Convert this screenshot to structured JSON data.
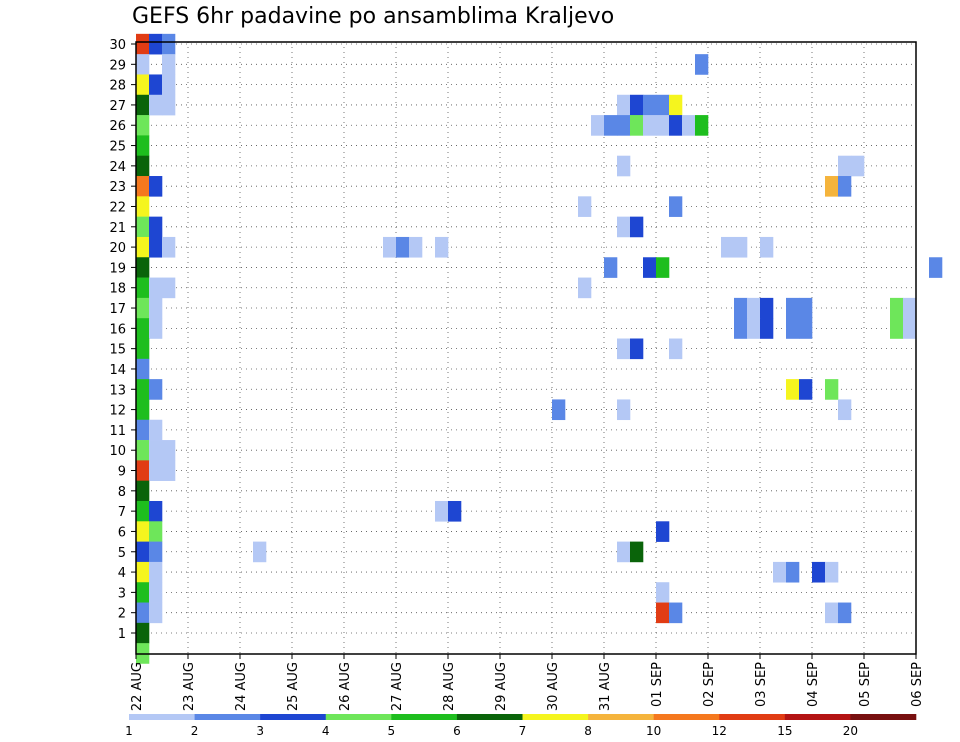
{
  "chart_data": {
    "type": "heatmap",
    "title": "GEFS 6hr padavine po ansamblima Kraljevo",
    "xlabel": "",
    "ylabel": "",
    "y_range": [
      1,
      30
    ],
    "y_ticks": [
      "1",
      "2",
      "3",
      "4",
      "5",
      "6",
      "7",
      "8",
      "9",
      "10",
      "11",
      "12",
      "13",
      "14",
      "15",
      "16",
      "17",
      "18",
      "19",
      "20",
      "21",
      "22",
      "23",
      "24",
      "25",
      "26",
      "27",
      "28",
      "29",
      "30"
    ],
    "x_ticks": [
      "22 AUG",
      "23 AUG",
      "24 AUG",
      "25 AUG",
      "26 AUG",
      "27 AUG",
      "28 AUG",
      "29 AUG",
      "30 AUG",
      "31 AUG",
      "01 SEP",
      "02 SEP",
      "03 SEP",
      "04 SEP",
      "05 SEP",
      "06 SEP"
    ],
    "steps_per_day": 4,
    "grid": true,
    "legend_position": "bottom",
    "legend": {
      "labels": [
        "1",
        "2",
        "3",
        "4",
        "5",
        "6",
        "7",
        "8",
        "10",
        "12",
        "15",
        "20"
      ],
      "colors": [
        "#b4c8f5",
        "#5a87e6",
        "#1e46d2",
        "#6ee65a",
        "#1ebe1e",
        "#0a640a",
        "#f5f51e",
        "#f5b43c",
        "#f5781e",
        "#e13c14",
        "#b41414",
        "#781010"
      ]
    },
    "cells": [
      {
        "m": 30,
        "t": 0,
        "c": 9
      },
      {
        "m": 30,
        "t": 1,
        "c": 2
      },
      {
        "m": 30,
        "t": 2,
        "c": 1
      },
      {
        "m": 29,
        "t": 0,
        "c": 0
      },
      {
        "m": 29,
        "t": 2,
        "c": 0
      },
      {
        "m": 29,
        "t": 43,
        "c": 1
      },
      {
        "m": 28,
        "t": 0,
        "c": 6
      },
      {
        "m": 28,
        "t": 1,
        "c": 2
      },
      {
        "m": 28,
        "t": 2,
        "c": 0
      },
      {
        "m": 27,
        "t": 0,
        "c": 5
      },
      {
        "m": 27,
        "t": 1,
        "c": 0
      },
      {
        "m": 27,
        "t": 2,
        "c": 0
      },
      {
        "m": 27,
        "t": 37,
        "c": 0
      },
      {
        "m": 27,
        "t": 38,
        "c": 2
      },
      {
        "m": 27,
        "t": 39,
        "c": 1
      },
      {
        "m": 27,
        "t": 40,
        "c": 1
      },
      {
        "m": 27,
        "t": 41,
        "c": 6
      },
      {
        "m": 26,
        "t": 0,
        "c": 3
      },
      {
        "m": 26,
        "t": 35,
        "c": 0
      },
      {
        "m": 26,
        "t": 36,
        "c": 1
      },
      {
        "m": 26,
        "t": 37,
        "c": 1
      },
      {
        "m": 26,
        "t": 38,
        "c": 3
      },
      {
        "m": 26,
        "t": 39,
        "c": 0
      },
      {
        "m": 26,
        "t": 40,
        "c": 0
      },
      {
        "m": 26,
        "t": 41,
        "c": 2
      },
      {
        "m": 26,
        "t": 42,
        "c": 0
      },
      {
        "m": 26,
        "t": 43,
        "c": 4
      },
      {
        "m": 25,
        "t": 0,
        "c": 4
      },
      {
        "m": 24,
        "t": 0,
        "c": 5
      },
      {
        "m": 24,
        "t": 37,
        "c": 0
      },
      {
        "m": 24,
        "t": 54,
        "c": 0
      },
      {
        "m": 24,
        "t": 55,
        "c": 0
      },
      {
        "m": 23,
        "t": 0,
        "c": 8
      },
      {
        "m": 23,
        "t": 1,
        "c": 2
      },
      {
        "m": 23,
        "t": 53,
        "c": 7
      },
      {
        "m": 23,
        "t": 54,
        "c": 1
      },
      {
        "m": 22,
        "t": 0,
        "c": 6
      },
      {
        "m": 22,
        "t": 34,
        "c": 0
      },
      {
        "m": 22,
        "t": 41,
        "c": 1
      },
      {
        "m": 21,
        "t": 0,
        "c": 3
      },
      {
        "m": 21,
        "t": 1,
        "c": 2
      },
      {
        "m": 21,
        "t": 37,
        "c": 0
      },
      {
        "m": 21,
        "t": 38,
        "c": 2
      },
      {
        "m": 20,
        "t": 0,
        "c": 6
      },
      {
        "m": 20,
        "t": 1,
        "c": 2
      },
      {
        "m": 20,
        "t": 2,
        "c": 0
      },
      {
        "m": 20,
        "t": 19,
        "c": 0
      },
      {
        "m": 20,
        "t": 20,
        "c": 1
      },
      {
        "m": 20,
        "t": 21,
        "c": 0
      },
      {
        "m": 20,
        "t": 23,
        "c": 0
      },
      {
        "m": 20,
        "t": 45,
        "c": 0
      },
      {
        "m": 20,
        "t": 46,
        "c": 0
      },
      {
        "m": 20,
        "t": 48,
        "c": 0
      },
      {
        "m": 19,
        "t": 0,
        "c": 5
      },
      {
        "m": 19,
        "t": 36,
        "c": 1
      },
      {
        "m": 19,
        "t": 39,
        "c": 2
      },
      {
        "m": 19,
        "t": 40,
        "c": 4
      },
      {
        "m": 19,
        "t": 61,
        "c": 1
      },
      {
        "m": 18,
        "t": 0,
        "c": 4
      },
      {
        "m": 18,
        "t": 1,
        "c": 0
      },
      {
        "m": 18,
        "t": 2,
        "c": 0
      },
      {
        "m": 18,
        "t": 34,
        "c": 0
      },
      {
        "m": 17,
        "t": 0,
        "c": 3
      },
      {
        "m": 17,
        "t": 1,
        "c": 0
      },
      {
        "m": 17,
        "t": 46,
        "c": 1
      },
      {
        "m": 17,
        "t": 47,
        "c": 0
      },
      {
        "m": 17,
        "t": 48,
        "c": 2
      },
      {
        "m": 17,
        "t": 50,
        "c": 1
      },
      {
        "m": 17,
        "t": 51,
        "c": 1
      },
      {
        "m": 17,
        "t": 58,
        "c": 3
      },
      {
        "m": 17,
        "t": 59,
        "c": 0
      },
      {
        "m": 16,
        "t": 0,
        "c": 4
      },
      {
        "m": 16,
        "t": 1,
        "c": 0
      },
      {
        "m": 16,
        "t": 46,
        "c": 1
      },
      {
        "m": 16,
        "t": 47,
        "c": 0
      },
      {
        "m": 16,
        "t": 48,
        "c": 2
      },
      {
        "m": 16,
        "t": 50,
        "c": 1
      },
      {
        "m": 16,
        "t": 51,
        "c": 1
      },
      {
        "m": 16,
        "t": 58,
        "c": 3
      },
      {
        "m": 16,
        "t": 59,
        "c": 0
      },
      {
        "m": 15,
        "t": 0,
        "c": 4
      },
      {
        "m": 15,
        "t": 37,
        "c": 0
      },
      {
        "m": 15,
        "t": 38,
        "c": 2
      },
      {
        "m": 15,
        "t": 41,
        "c": 0
      },
      {
        "m": 14,
        "t": 0,
        "c": 1
      },
      {
        "m": 13,
        "t": 0,
        "c": 4
      },
      {
        "m": 13,
        "t": 1,
        "c": 1
      },
      {
        "m": 13,
        "t": 50,
        "c": 6
      },
      {
        "m": 13,
        "t": 51,
        "c": 2
      },
      {
        "m": 13,
        "t": 53,
        "c": 3
      },
      {
        "m": 12,
        "t": 0,
        "c": 4
      },
      {
        "m": 12,
        "t": 32,
        "c": 1
      },
      {
        "m": 12,
        "t": 37,
        "c": 0
      },
      {
        "m": 12,
        "t": 54,
        "c": 0
      },
      {
        "m": 11,
        "t": 0,
        "c": 1
      },
      {
        "m": 11,
        "t": 1,
        "c": 0
      },
      {
        "m": 10,
        "t": 0,
        "c": 3
      },
      {
        "m": 10,
        "t": 1,
        "c": 0
      },
      {
        "m": 10,
        "t": 2,
        "c": 0
      },
      {
        "m": 9,
        "t": 0,
        "c": 9
      },
      {
        "m": 9,
        "t": 1,
        "c": 0
      },
      {
        "m": 9,
        "t": 2,
        "c": 0
      },
      {
        "m": 8,
        "t": 0,
        "c": 5
      },
      {
        "m": 7,
        "t": 0,
        "c": 4
      },
      {
        "m": 7,
        "t": 1,
        "c": 2
      },
      {
        "m": 7,
        "t": 23,
        "c": 0
      },
      {
        "m": 7,
        "t": 24,
        "c": 2
      },
      {
        "m": 6,
        "t": 0,
        "c": 6
      },
      {
        "m": 6,
        "t": 1,
        "c": 3
      },
      {
        "m": 6,
        "t": 40,
        "c": 2
      },
      {
        "m": 5,
        "t": 0,
        "c": 2
      },
      {
        "m": 5,
        "t": 1,
        "c": 1
      },
      {
        "m": 5,
        "t": 9,
        "c": 0
      },
      {
        "m": 5,
        "t": 37,
        "c": 0
      },
      {
        "m": 5,
        "t": 38,
        "c": 5
      },
      {
        "m": 4,
        "t": 0,
        "c": 6
      },
      {
        "m": 4,
        "t": 1,
        "c": 0
      },
      {
        "m": 4,
        "t": 49,
        "c": 0
      },
      {
        "m": 4,
        "t": 50,
        "c": 1
      },
      {
        "m": 4,
        "t": 52,
        "c": 2
      },
      {
        "m": 4,
        "t": 53,
        "c": 0
      },
      {
        "m": 3,
        "t": 0,
        "c": 4
      },
      {
        "m": 3,
        "t": 1,
        "c": 0
      },
      {
        "m": 3,
        "t": 40,
        "c": 0
      },
      {
        "m": 2,
        "t": 0,
        "c": 1
      },
      {
        "m": 2,
        "t": 1,
        "c": 0
      },
      {
        "m": 2,
        "t": 40,
        "c": 9
      },
      {
        "m": 2,
        "t": 41,
        "c": 1
      },
      {
        "m": 2,
        "t": 53,
        "c": 0
      },
      {
        "m": 2,
        "t": 54,
        "c": 1
      },
      {
        "m": 1,
        "t": 0,
        "c": 5
      },
      {
        "m": 0,
        "t": 0,
        "c": 3
      }
    ]
  }
}
